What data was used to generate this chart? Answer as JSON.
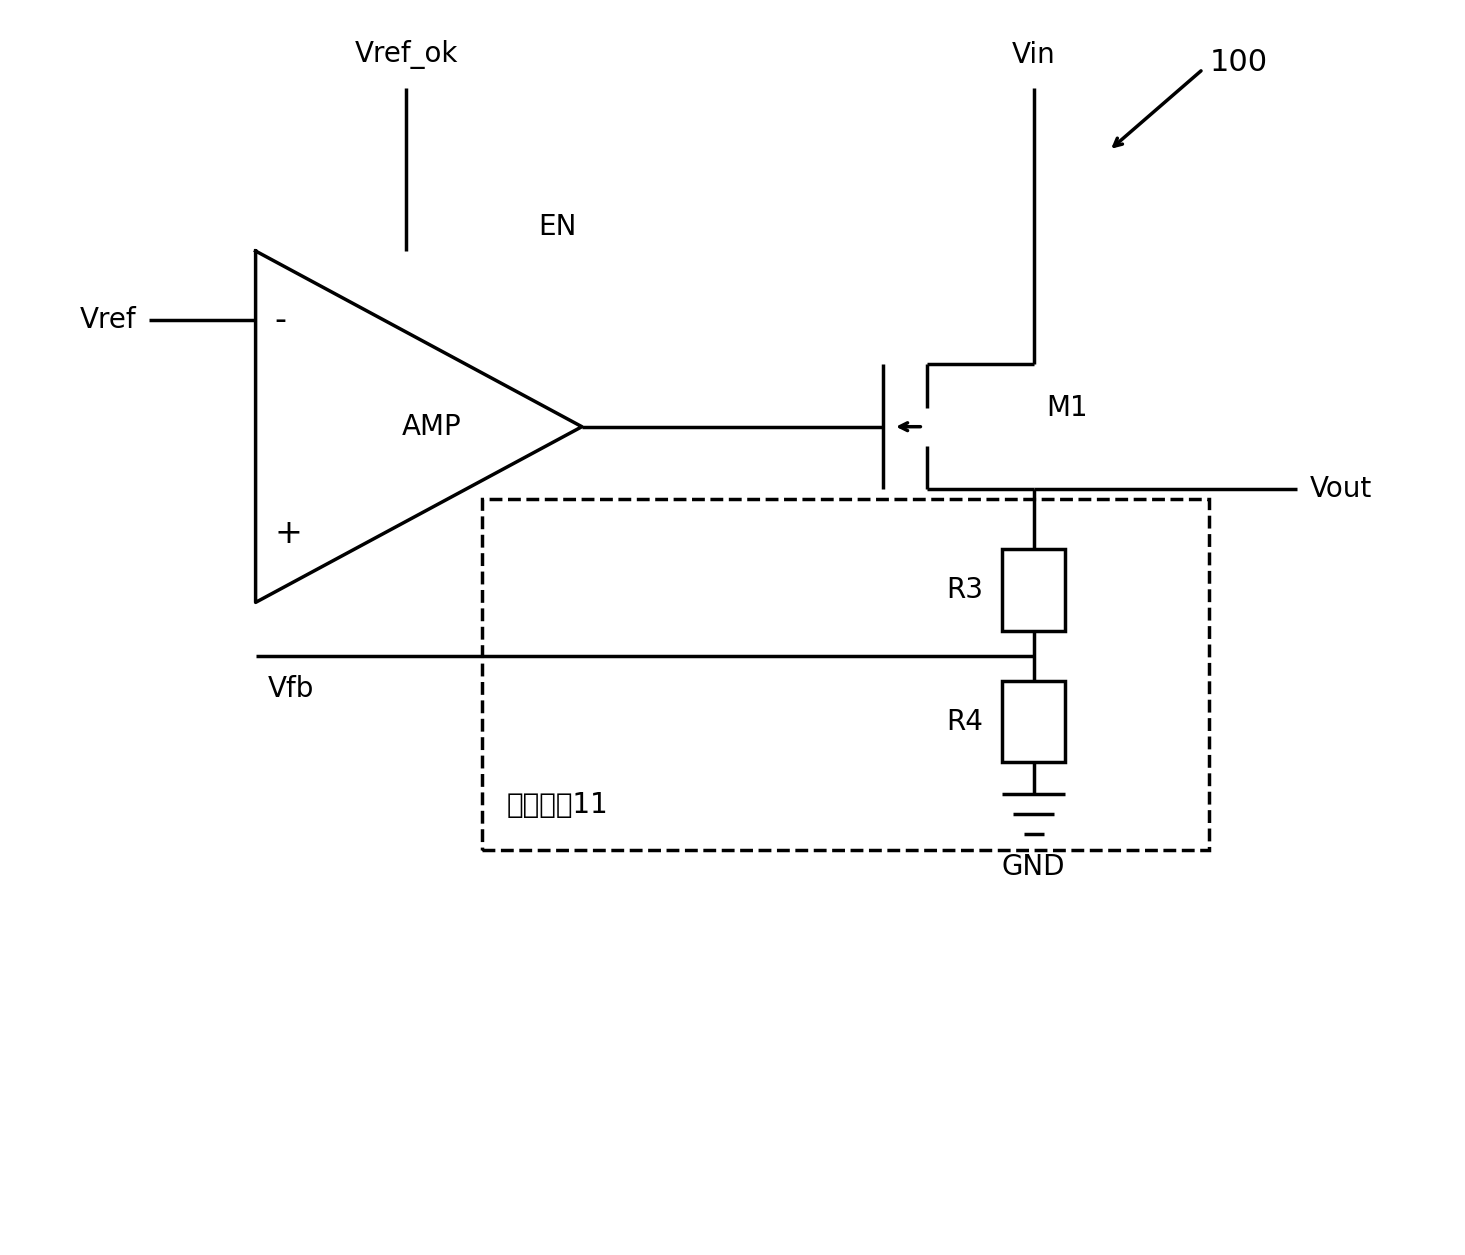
{
  "bg_color": "#ffffff",
  "line_color": "#000000",
  "line_width": 2.5,
  "figsize": [
    14.65,
    12.55
  ],
  "dpi": 100,
  "label_100": "100",
  "label_vref_ok": "Vref_ok",
  "label_vref": "Vref",
  "label_en": "EN",
  "label_amp": "AMP",
  "label_plus": "+",
  "label_minus": "-",
  "label_vin": "Vin",
  "label_m1": "M1",
  "label_vout": "Vout",
  "label_vfb": "Vfb",
  "label_r3": "R3",
  "label_r4": "R4",
  "label_feedback": "反馈单元11",
  "label_gnd": "GND",
  "font_size_labels": 20,
  "font_size_100": 22
}
